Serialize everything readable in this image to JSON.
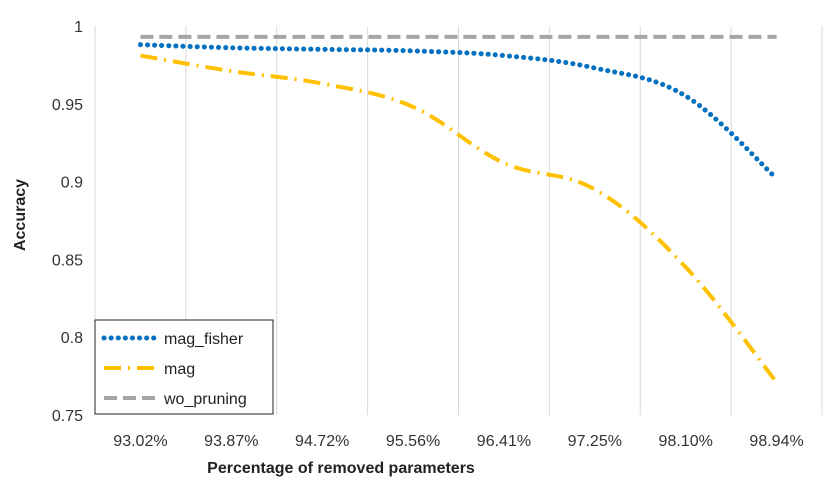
{
  "chart_data": {
    "type": "line",
    "title": "",
    "xlabel": "Percentage of removed parameters",
    "ylabel": "Accuracy",
    "ylim": [
      0.75,
      1.0
    ],
    "yticks": [
      "0.75",
      "0.8",
      "0.85",
      "0.9",
      "0.95",
      "1"
    ],
    "categories": [
      "93.02%",
      "93.87%",
      "94.72%",
      "95.56%",
      "96.41%",
      "97.25%",
      "98.10%",
      "98.94%"
    ],
    "grid": "vertical",
    "legend_position": "bottom-left",
    "series": [
      {
        "name": "mag_fisher",
        "color": "#0070C0",
        "style": "dotted",
        "values": [
          0.988,
          0.986,
          0.985,
          0.984,
          0.981,
          0.973,
          0.955,
          0.902
        ]
      },
      {
        "name": "mag",
        "color": "#FFC000",
        "style": "dash-dot",
        "values": [
          0.981,
          0.971,
          0.963,
          0.948,
          0.912,
          0.895,
          0.845,
          0.771
        ]
      },
      {
        "name": "wo_pruning",
        "color": "#A5A5A5",
        "style": "dashed",
        "values": [
          0.993,
          0.993,
          0.993,
          0.993,
          0.993,
          0.993,
          0.993,
          0.993
        ]
      }
    ]
  }
}
